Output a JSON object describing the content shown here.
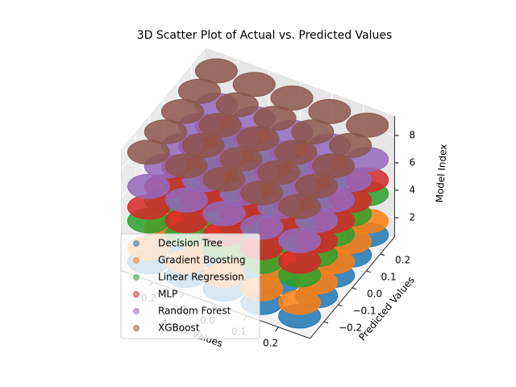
{
  "chart_data": {
    "type": "scatter3d",
    "title": "3D Scatter Plot of Actual vs. Predicted Values",
    "xlabel": "Actual Values",
    "ylabel": "Predicted Values",
    "zlabel": "Model Index",
    "xlim": [
      -0.3,
      0.3
    ],
    "ylim": [
      -0.3,
      0.3
    ],
    "zlim": [
      0.6,
      9.4
    ],
    "xticks": [
      {
        "value": -0.2,
        "label": "−0.2"
      },
      {
        "value": -0.1,
        "label": "−0.1"
      },
      {
        "value": 0,
        "label": "0.0"
      },
      0.1,
      0.2
    ],
    "yticks": [
      {
        "value": -0.2,
        "label": "−0.2"
      },
      {
        "value": -0.1,
        "label": "−0.1"
      },
      {
        "value": 0,
        "label": "0.0"
      },
      0.1,
      0.2
    ],
    "zticks": [
      2,
      4,
      6,
      8
    ],
    "grid": true,
    "legend": "lower left",
    "series": [
      {
        "name": "Decision Tree",
        "color": "#1f77b4",
        "x": [
          -0.24,
          -0.12,
          0,
          0.12,
          0.24,
          -0.24,
          -0.12,
          0,
          0.12,
          0.24,
          -0.24,
          -0.12,
          0,
          0.12,
          0.24,
          -0.24,
          -0.12,
          0,
          0.12,
          0.24,
          -0.24,
          -0.12,
          0,
          0.12,
          0.24
        ],
        "y": [
          -0.24,
          -0.24,
          -0.24,
          -0.24,
          -0.24,
          -0.12,
          -0.12,
          -0.12,
          -0.12,
          -0.12,
          0,
          0,
          0,
          0,
          0,
          0.12,
          0.12,
          0.12,
          0.12,
          0.12,
          0.24,
          0.24,
          0.24,
          0.24,
          0.24
        ],
        "z": [
          1,
          1,
          1,
          1,
          1,
          1,
          1,
          1,
          1,
          1,
          1,
          1,
          1,
          1,
          1,
          1,
          1,
          1,
          1,
          1,
          1,
          1,
          1,
          1,
          1
        ]
      },
      {
        "name": "Gradient Boosting",
        "color": "#ff7f0e",
        "x": [
          -0.24,
          -0.12,
          0,
          0.12,
          0.24,
          -0.24,
          -0.12,
          0,
          0.12,
          0.24,
          -0.24,
          -0.12,
          0,
          0.12,
          0.24,
          -0.24,
          -0.12,
          0,
          0.12,
          0.24,
          -0.24,
          -0.12,
          0,
          0.12,
          0.24
        ],
        "y": [
          -0.24,
          -0.24,
          -0.24,
          -0.24,
          -0.24,
          -0.12,
          -0.12,
          -0.12,
          -0.12,
          -0.12,
          0,
          0,
          0,
          0,
          0,
          0.12,
          0.12,
          0.12,
          0.12,
          0.12,
          0.24,
          0.24,
          0.24,
          0.24,
          0.24
        ],
        "z": [
          2,
          2,
          2,
          2,
          2,
          2,
          2,
          2,
          2,
          2,
          2,
          2,
          2,
          2,
          2,
          2,
          2,
          2,
          2,
          2,
          2,
          2,
          2,
          2,
          2
        ]
      },
      {
        "name": "Linear Regression",
        "color": "#2ca02c",
        "x": [
          -0.24,
          -0.12,
          0,
          0.12,
          0.24,
          -0.24,
          -0.12,
          0,
          0.12,
          0.24,
          -0.24,
          -0.12,
          0,
          0.12,
          0.24,
          -0.24,
          -0.12,
          0,
          0.12,
          0.24,
          -0.24,
          -0.12,
          0,
          0.12,
          0.24
        ],
        "y": [
          -0.24,
          -0.24,
          -0.24,
          -0.24,
          -0.24,
          -0.12,
          -0.12,
          -0.12,
          -0.12,
          -0.12,
          0,
          0,
          0,
          0,
          0,
          0.12,
          0.12,
          0.12,
          0.12,
          0.12,
          0.24,
          0.24,
          0.24,
          0.24,
          0.24
        ],
        "z": [
          4,
          4,
          4,
          4,
          4,
          4,
          4,
          4,
          4,
          4,
          4,
          4,
          4,
          4,
          4,
          4,
          4,
          4,
          4,
          4,
          4,
          4,
          4,
          4,
          4
        ]
      },
      {
        "name": "MLP",
        "color": "#d62728",
        "x": [
          -0.24,
          -0.12,
          0,
          0.12,
          0.24,
          -0.24,
          -0.12,
          0,
          0.12,
          0.24,
          -0.24,
          -0.12,
          0,
          0.12,
          0.24,
          -0.24,
          -0.12,
          0,
          0.12,
          0.24,
          -0.24,
          -0.12,
          0,
          0.12,
          0.24
        ],
        "y": [
          -0.24,
          -0.24,
          -0.24,
          -0.24,
          -0.24,
          -0.12,
          -0.12,
          -0.12,
          -0.12,
          -0.12,
          0,
          0,
          0,
          0,
          0,
          0.12,
          0.12,
          0.12,
          0.12,
          0.12,
          0.24,
          0.24,
          0.24,
          0.24,
          0.24
        ],
        "z": [
          5,
          5,
          5,
          5,
          5,
          5,
          5,
          5,
          5,
          5,
          5,
          5,
          5,
          5,
          5,
          5,
          5,
          5,
          5,
          5,
          5,
          5,
          5,
          5,
          5
        ]
      },
      {
        "name": "Random Forest",
        "color": "#9467bd",
        "x": [
          -0.24,
          -0.12,
          0,
          0.12,
          0.24,
          -0.24,
          -0.12,
          0,
          0.12,
          0.24,
          -0.24,
          -0.12,
          0,
          0.12,
          0.24,
          -0.24,
          -0.12,
          0,
          0.12,
          0.24,
          -0.24,
          -0.12,
          0,
          0.12,
          0.24
        ],
        "y": [
          -0.24,
          -0.24,
          -0.24,
          -0.24,
          -0.24,
          -0.12,
          -0.12,
          -0.12,
          -0.12,
          -0.12,
          0,
          0,
          0,
          0,
          0,
          0.12,
          0.12,
          0.12,
          0.12,
          0.12,
          0.24,
          0.24,
          0.24,
          0.24,
          0.24
        ],
        "z": [
          6.5,
          6.5,
          6.5,
          6.5,
          6.5,
          6.5,
          6.5,
          6.5,
          6.5,
          6.5,
          6.5,
          6.5,
          6.5,
          6.5,
          6.5,
          6.5,
          6.5,
          6.5,
          6.5,
          6.5,
          6.5,
          6.5,
          6.5,
          6.5,
          6.5
        ]
      },
      {
        "name": "XGBoost",
        "color": "#8c564b",
        "x": [
          -0.24,
          -0.12,
          0,
          0.12,
          0.24,
          -0.24,
          -0.12,
          0,
          0.12,
          0.24,
          -0.24,
          -0.12,
          0,
          0.12,
          0.24,
          -0.24,
          -0.12,
          0,
          0.12,
          0.24,
          -0.24,
          -0.12,
          0,
          0.12,
          0.24
        ],
        "y": [
          -0.24,
          -0.24,
          -0.24,
          -0.24,
          -0.24,
          -0.12,
          -0.12,
          -0.12,
          -0.12,
          -0.12,
          0,
          0,
          0,
          0,
          0,
          0.12,
          0.12,
          0.12,
          0.12,
          0.12,
          0.24,
          0.24,
          0.24,
          0.24,
          0.24
        ],
        "z": [
          9,
          9,
          9,
          9,
          9,
          9,
          9,
          9,
          9,
          9,
          9,
          9,
          9,
          9,
          9,
          9,
          9,
          9,
          9,
          9,
          9,
          9,
          9,
          9,
          9
        ]
      }
    ]
  }
}
